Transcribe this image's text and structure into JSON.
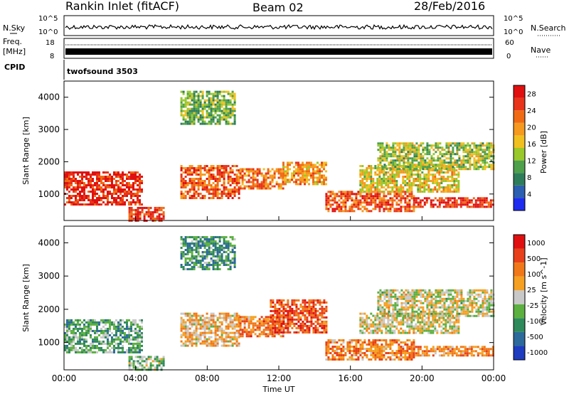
{
  "header": {
    "station": "Rankin Inlet (fitACF)",
    "beam": "Beam 02",
    "date": "28/Feb/2016"
  },
  "panels": {
    "nsky": {
      "label": "N.Sky",
      "right_label": "N.Search",
      "left_ticks": [
        "10^5",
        "10^0"
      ],
      "right_ticks": [
        "10^5",
        "10^0"
      ]
    },
    "freq": {
      "label_line1": "Freq.",
      "label_line2": "[MHz]",
      "right_label": "Nave",
      "left_ticks": [
        "18",
        "8"
      ],
      "right_ticks": [
        "60",
        "0"
      ]
    },
    "cpid": {
      "label": "CPID",
      "value": "twofsound 3503"
    }
  },
  "chart_data": [
    {
      "type": "heatmap",
      "name": "power",
      "ylabel": "Slant Range [km]",
      "xlabel": "",
      "xlim": [
        "00:00",
        "24:00"
      ],
      "ylim": [
        180,
        4500
      ],
      "yticks": [
        1000,
        2000,
        3000,
        4000
      ],
      "colorbar": {
        "label": "Power [dB]",
        "ticks": [
          4,
          8,
          12,
          16,
          20,
          24,
          28
        ],
        "range": [
          0,
          30
        ],
        "colors": [
          "#1e2cf0",
          "#2c5fb0",
          "#2e7d5a",
          "#4ea04a",
          "#98c82a",
          "#f0c020",
          "#f59a1e",
          "#f06a14",
          "#e8341a",
          "#e01010"
        ]
      },
      "bands": [
        {
          "t": [
            0.0,
            4.3
          ],
          "r": [
            700,
            1700
          ],
          "level": 0.9
        },
        {
          "t": [
            3.6,
            5.6
          ],
          "r": [
            200,
            600
          ],
          "level": 0.85
        },
        {
          "t": [
            6.5,
            9.8
          ],
          "r": [
            900,
            1900
          ],
          "level": 0.78
        },
        {
          "t": [
            9.8,
            12.2
          ],
          "r": [
            1200,
            1800
          ],
          "level": 0.72
        },
        {
          "t": [
            12.2,
            14.6
          ],
          "r": [
            1300,
            2000
          ],
          "level": 0.65
        },
        {
          "t": [
            14.6,
            19.5
          ],
          "r": [
            500,
            1100
          ],
          "level": 0.8
        },
        {
          "t": [
            16.5,
            22.0
          ],
          "r": [
            1100,
            1900
          ],
          "level": 0.55
        },
        {
          "t": [
            19.5,
            24.0
          ],
          "r": [
            600,
            900
          ],
          "level": 0.88
        },
        {
          "t": [
            17.5,
            24.0
          ],
          "r": [
            1800,
            2600
          ],
          "level": 0.45
        },
        {
          "t": [
            6.5,
            9.5
          ],
          "r": [
            3200,
            4200
          ],
          "level": 0.4
        }
      ]
    },
    {
      "type": "heatmap",
      "name": "velocity",
      "ylabel": "Slant Range [km]",
      "xlabel": "Time UT",
      "xlim": [
        "00:00",
        "24:00"
      ],
      "ylim": [
        180,
        4500
      ],
      "xticks": [
        "00:00",
        "04:00",
        "08:00",
        "12:00",
        "16:00",
        "20:00",
        "00:00"
      ],
      "yticks": [
        1000,
        2000,
        3000,
        4000
      ],
      "colorbar": {
        "label": "Velocity [m s^-1]",
        "ticks": [
          "1000",
          "500",
          "100",
          "25",
          "-25",
          "-100",
          "-500",
          "-1000"
        ],
        "colors": [
          "#1d3cc0",
          "#2b6a9a",
          "#2e8a5a",
          "#5cb040",
          "#c8c8c8",
          "#f5a020",
          "#f07818",
          "#e8401a",
          "#e01010"
        ]
      },
      "bands": [
        {
          "t": [
            0.0,
            4.3
          ],
          "r": [
            700,
            1700
          ],
          "level": 0.35
        },
        {
          "t": [
            3.6,
            5.6
          ],
          "r": [
            200,
            600
          ],
          "level": 0.4
        },
        {
          "t": [
            6.5,
            9.8
          ],
          "r": [
            900,
            1900
          ],
          "level": 0.6
        },
        {
          "t": [
            9.8,
            12.2
          ],
          "r": [
            1200,
            1800
          ],
          "level": 0.72
        },
        {
          "t": [
            11.5,
            14.6
          ],
          "r": [
            1300,
            2300
          ],
          "level": 0.82
        },
        {
          "t": [
            14.6,
            19.5
          ],
          "r": [
            500,
            1100
          ],
          "level": 0.7
        },
        {
          "t": [
            16.5,
            22.0
          ],
          "r": [
            1300,
            1900
          ],
          "level": 0.52
        },
        {
          "t": [
            19.5,
            24.0
          ],
          "r": [
            600,
            900
          ],
          "level": 0.68
        },
        {
          "t": [
            17.5,
            24.0
          ],
          "r": [
            1800,
            2600
          ],
          "level": 0.5
        },
        {
          "t": [
            6.5,
            9.5
          ],
          "r": [
            3200,
            4200
          ],
          "level": 0.3
        }
      ]
    }
  ]
}
